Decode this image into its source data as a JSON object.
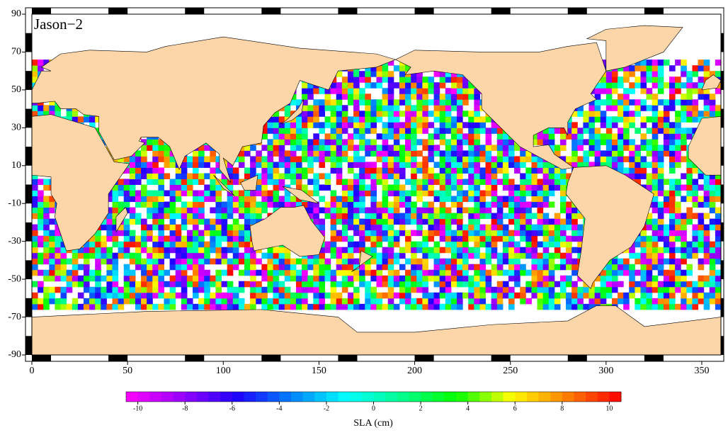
{
  "chart_data": {
    "type": "map",
    "title": "Jason−2",
    "xlim": [
      0,
      360
    ],
    "xticks": [
      0,
      50,
      100,
      150,
      200,
      250,
      300,
      350
    ],
    "ylim": [
      -90,
      90
    ],
    "yticks": [
      -90,
      -70,
      -50,
      -30,
      -10,
      10,
      30,
      50,
      70,
      90
    ],
    "land_color": "#fcd5a8",
    "colorbar": {
      "label": "SLA (cm)",
      "clim": [
        -10.5,
        10.5
      ],
      "ticks": [
        -10,
        -8,
        -6,
        -4,
        -2,
        0,
        2,
        4,
        6,
        8,
        10
      ],
      "colormap": [
        "#ff00ff",
        "#9a00ff",
        "#2000ff",
        "#0080ff",
        "#00ffff",
        "#00ff90",
        "#00ff00",
        "#ffff00",
        "#ff8000",
        "#ff0000"
      ]
    }
  }
}
